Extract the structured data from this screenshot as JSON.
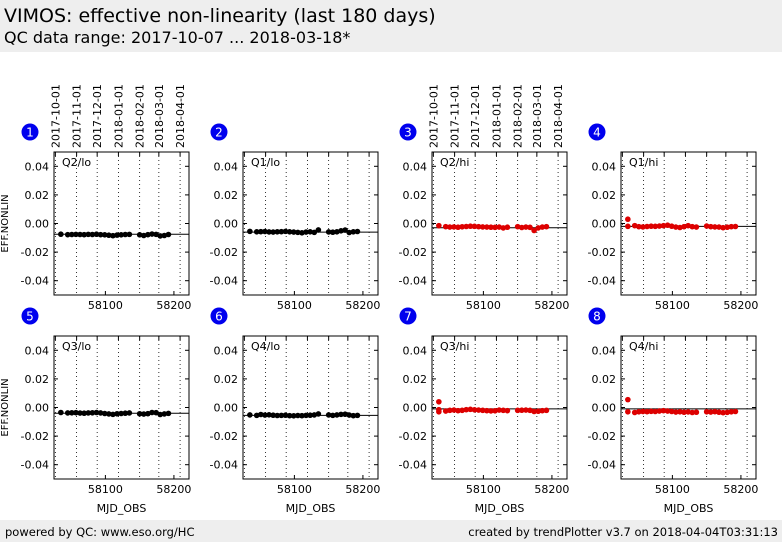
{
  "header": {
    "title": "VIMOS: effective non-linearity (last 180 days)",
    "subtitle": "QC data range: 2017-10-07 ... 2018-03-18*"
  },
  "footer": {
    "left": "powered by QC: www.eso.org/HC",
    "right": "created by trendPlotter v3.7 on 2018-04-04T03:31:13"
  },
  "chart_data": {
    "type": "scatter",
    "xlabel": "MJD_OBS",
    "ylabel": "EFF.NONLIN",
    "xlim": [
      58025,
      58222
    ],
    "ylim": [
      -0.05,
      0.05
    ],
    "x_ticks": [
      58100,
      58200
    ],
    "y_ticks": [
      "0.04",
      "0.02",
      "0.00",
      "-0.02",
      "-0.04"
    ],
    "top_date_ticks": [
      "2017-10-01",
      "2017-11-01",
      "2017-12-01",
      "2018-01-01",
      "2018-02-01",
      "2018-03-01",
      "2018-04-01"
    ],
    "top_date_ticks_mjd": [
      58027,
      58058,
      58088,
      58119,
      58150,
      58178,
      58209
    ],
    "grid": "vertical-dotted",
    "colors": {
      "lo": "#000000",
      "hi": "#dd0000",
      "badge": "#0000ee"
    },
    "panels": [
      {
        "badge": "1",
        "label": "Q2/lo",
        "color": "#000000",
        "reference": -0.0075,
        "x": [
          58035,
          58045,
          58051,
          58057,
          58063,
          58069,
          58075,
          58081,
          58087,
          58093,
          58099,
          58105,
          58111,
          58117,
          58123,
          58129,
          58135,
          58150,
          58156,
          58162,
          58168,
          58174,
          58180,
          58186,
          58192
        ],
        "y": [
          -0.0075,
          -0.0078,
          -0.0077,
          -0.0076,
          -0.0077,
          -0.0078,
          -0.0076,
          -0.0077,
          -0.0075,
          -0.0078,
          -0.0079,
          -0.0082,
          -0.0085,
          -0.0081,
          -0.0079,
          -0.0077,
          -0.0076,
          -0.0079,
          -0.0084,
          -0.0078,
          -0.0074,
          -0.0076,
          -0.0087,
          -0.0084,
          -0.0077
        ]
      },
      {
        "badge": "2",
        "label": "Q1/lo",
        "color": "#000000",
        "reference": -0.006,
        "x": [
          58035,
          58045,
          58051,
          58057,
          58063,
          58069,
          58075,
          58081,
          58087,
          58093,
          58099,
          58105,
          58111,
          58117,
          58123,
          58129,
          58135,
          58150,
          58156,
          58162,
          58168,
          58174,
          58180,
          58186,
          58192
        ],
        "y": [
          -0.0055,
          -0.0058,
          -0.0057,
          -0.0056,
          -0.0059,
          -0.006,
          -0.0058,
          -0.0057,
          -0.0055,
          -0.0058,
          -0.006,
          -0.0062,
          -0.0065,
          -0.006,
          -0.0058,
          -0.0062,
          -0.0045,
          -0.0059,
          -0.0061,
          -0.0058,
          -0.0051,
          -0.0046,
          -0.0063,
          -0.0058,
          -0.0056
        ]
      },
      {
        "badge": "3",
        "label": "Q2/hi",
        "color": "#dd0000",
        "reference": -0.003,
        "x": [
          58035,
          58045,
          58051,
          58057,
          58063,
          58069,
          58075,
          58081,
          58087,
          58093,
          58099,
          58105,
          58111,
          58117,
          58123,
          58129,
          58135,
          58150,
          58156,
          58162,
          58168,
          58174,
          58180,
          58186,
          58192
        ],
        "y": [
          -0.0015,
          -0.0022,
          -0.0025,
          -0.0024,
          -0.0026,
          -0.0023,
          -0.0021,
          -0.0019,
          -0.002,
          -0.0022,
          -0.0024,
          -0.0025,
          -0.0026,
          -0.0027,
          -0.0025,
          -0.0031,
          -0.0026,
          -0.0022,
          -0.0028,
          -0.0025,
          -0.0027,
          -0.0049,
          -0.0031,
          -0.0025,
          -0.0022
        ]
      },
      {
        "badge": "4",
        "label": "Q1/hi",
        "color": "#dd0000",
        "reference": -0.002,
        "x": [
          58035,
          58035,
          58045,
          58051,
          58057,
          58063,
          58069,
          58075,
          58081,
          58087,
          58093,
          58099,
          58105,
          58111,
          58117,
          58123,
          58129,
          58135,
          58150,
          58156,
          58162,
          58168,
          58174,
          58180,
          58186,
          58192
        ],
        "y": [
          0.003,
          -0.002,
          -0.0015,
          -0.0022,
          -0.0024,
          -0.0021,
          -0.0019,
          -0.002,
          -0.0018,
          -0.0015,
          -0.0012,
          -0.0019,
          -0.0025,
          -0.0028,
          -0.0022,
          -0.0015,
          -0.0022,
          -0.0025,
          -0.0018,
          -0.0022,
          -0.0024,
          -0.0025,
          -0.0029,
          -0.0026,
          -0.0022,
          -0.0021
        ]
      },
      {
        "badge": "5",
        "label": "Q3/lo",
        "color": "#000000",
        "reference": -0.004,
        "x": [
          58035,
          58045,
          58051,
          58057,
          58063,
          58069,
          58075,
          58081,
          58087,
          58093,
          58099,
          58105,
          58111,
          58117,
          58123,
          58129,
          58135,
          58150,
          58156,
          58162,
          58168,
          58174,
          58180,
          58186,
          58192
        ],
        "y": [
          -0.0035,
          -0.0038,
          -0.0037,
          -0.0036,
          -0.0039,
          -0.004,
          -0.0038,
          -0.0037,
          -0.0035,
          -0.0038,
          -0.0042,
          -0.0045,
          -0.0048,
          -0.0044,
          -0.0042,
          -0.004,
          -0.0038,
          -0.0044,
          -0.0046,
          -0.0043,
          -0.0035,
          -0.0036,
          -0.0049,
          -0.0045,
          -0.0041
        ]
      },
      {
        "badge": "6",
        "label": "Q4/lo",
        "color": "#000000",
        "reference": -0.0055,
        "x": [
          58035,
          58045,
          58051,
          58057,
          58063,
          58069,
          58075,
          58081,
          58087,
          58093,
          58099,
          58105,
          58111,
          58117,
          58123,
          58129,
          58135,
          58150,
          58156,
          58162,
          58168,
          58174,
          58180,
          58186,
          58192
        ],
        "y": [
          -0.0052,
          -0.0055,
          -0.0049,
          -0.0053,
          -0.0051,
          -0.0054,
          -0.0056,
          -0.0055,
          -0.0054,
          -0.0057,
          -0.0058,
          -0.0056,
          -0.0057,
          -0.0055,
          -0.0054,
          -0.0052,
          -0.0045,
          -0.0052,
          -0.0055,
          -0.0052,
          -0.0048,
          -0.0047,
          -0.0053,
          -0.0057,
          -0.0055
        ]
      },
      {
        "badge": "7",
        "label": "Q3/hi",
        "color": "#dd0000",
        "reference": -0.001,
        "x": [
          58035,
          58035,
          58035,
          58045,
          58051,
          58057,
          58063,
          58069,
          58075,
          58081,
          58087,
          58093,
          58099,
          58105,
          58111,
          58117,
          58123,
          58129,
          58135,
          58150,
          58156,
          58162,
          58168,
          58174,
          58180,
          58186,
          58192
        ],
        "y": [
          0.004,
          -0.0015,
          -0.003,
          -0.0025,
          -0.002,
          -0.0018,
          -0.0022,
          -0.002,
          -0.0015,
          -0.0013,
          -0.0016,
          -0.0018,
          -0.002,
          -0.0022,
          -0.0024,
          -0.0023,
          -0.0018,
          -0.002,
          -0.0022,
          -0.002,
          -0.0019,
          -0.0018,
          -0.002,
          -0.0028,
          -0.0026,
          -0.0022,
          -0.002
        ]
      },
      {
        "badge": "8",
        "label": "Q4/hi",
        "color": "#dd0000",
        "reference": -0.001,
        "x": [
          58035,
          58035,
          58045,
          58051,
          58057,
          58063,
          58069,
          58075,
          58081,
          58087,
          58093,
          58099,
          58105,
          58111,
          58117,
          58123,
          58129,
          58135,
          58150,
          58156,
          58162,
          58168,
          58174,
          58180,
          58186,
          58192
        ],
        "y": [
          0.0055,
          -0.003,
          -0.0035,
          -0.003,
          -0.0028,
          -0.0029,
          -0.0027,
          -0.0028,
          -0.0025,
          -0.0022,
          -0.0025,
          -0.0028,
          -0.0032,
          -0.003,
          -0.0033,
          -0.0031,
          -0.0035,
          -0.0033,
          -0.003,
          -0.0032,
          -0.0029,
          -0.0033,
          -0.0036,
          -0.0034,
          -0.003,
          -0.0028
        ]
      }
    ]
  }
}
